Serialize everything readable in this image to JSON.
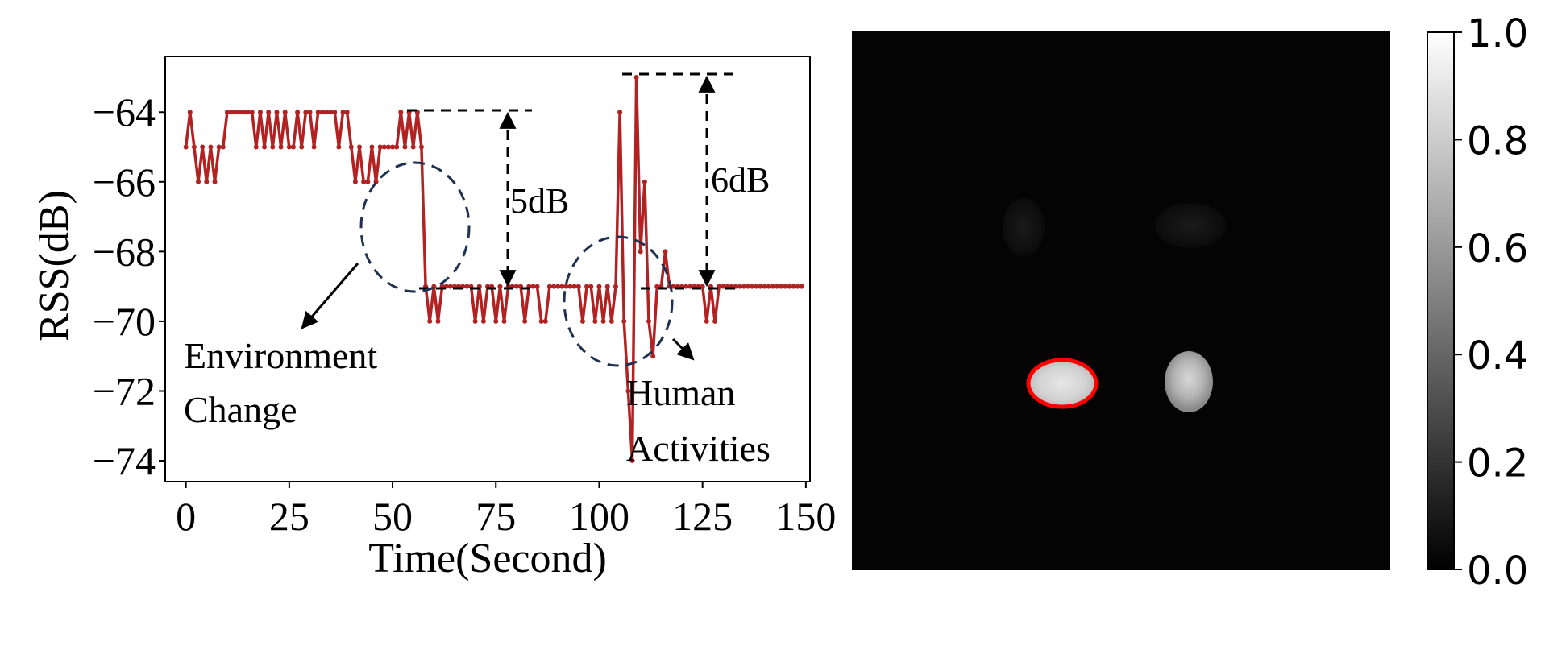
{
  "chart_data": [
    {
      "type": "line",
      "xlabel": "Time(Second)",
      "ylabel": "RSS(dB)",
      "xlim": [
        -5,
        151
      ],
      "ylim": [
        -74.6,
        -62.4
      ],
      "xticks": [
        0,
        25,
        50,
        75,
        100,
        125,
        150
      ],
      "yticks": [
        -64,
        -66,
        -68,
        -70,
        -72,
        -74
      ],
      "tick_labels_x": [
        "0",
        "25",
        "50",
        "75",
        "100",
        "125",
        "150"
      ],
      "tick_labels_y": [
        "−64",
        "−66",
        "−68",
        "−70",
        "−72",
        "−74"
      ],
      "color": "#b22222",
      "series": [
        {
          "x": [
            0,
            1,
            2,
            3,
            4,
            5,
            6,
            7,
            8,
            9,
            10,
            11,
            12,
            13,
            14,
            15,
            16,
            17,
            18,
            19,
            20,
            21,
            22,
            23,
            24,
            25,
            26,
            27,
            28,
            29,
            30,
            31,
            32,
            33,
            34,
            35,
            36,
            37,
            38,
            39,
            40,
            41,
            42,
            43,
            44,
            45,
            46,
            47,
            48,
            49,
            50,
            51,
            52,
            53,
            54,
            55,
            56,
            57,
            58,
            59,
            60,
            61,
            62,
            63,
            64,
            65,
            66,
            67,
            68,
            69,
            70,
            71,
            72,
            73,
            74,
            75,
            76,
            77,
            78,
            79,
            80,
            81,
            82,
            83,
            84,
            85,
            86,
            87,
            88,
            89,
            90,
            91,
            92,
            93,
            94,
            95,
            96,
            97,
            98,
            99,
            100,
            101,
            102,
            103,
            104,
            105,
            106,
            107,
            108,
            109,
            110,
            111,
            112,
            113,
            114,
            115,
            116,
            117,
            118,
            119,
            120,
            121,
            122,
            123,
            124,
            125,
            126,
            127,
            128,
            129,
            130,
            131,
            132,
            133,
            134,
            135,
            136,
            137,
            138,
            139,
            140,
            141,
            142,
            143,
            144,
            145,
            146,
            147,
            148,
            149
          ],
          "y": [
            -65,
            -64,
            -65,
            -66,
            -65,
            -66,
            -65,
            -66,
            -65,
            -65,
            -64,
            -64,
            -64,
            -64,
            -64,
            -64,
            -64,
            -65,
            -64,
            -65,
            -64,
            -65,
            -64,
            -65,
            -64,
            -65,
            -65,
            -64,
            -65,
            -64,
            -64,
            -65,
            -64,
            -64,
            -64,
            -64,
            -64,
            -65,
            -64,
            -64,
            -65,
            -66,
            -65,
            -66,
            -66,
            -65,
            -66,
            -65,
            -65,
            -65,
            -65,
            -65,
            -64,
            -65,
            -64,
            -65,
            -64,
            -65,
            -69,
            -70,
            -69,
            -70,
            -69,
            -69,
            -69,
            -69,
            -69,
            -69,
            -69,
            -69,
            -70,
            -69,
            -70,
            -69,
            -69,
            -70,
            -69,
            -70,
            -69,
            -69,
            -69,
            -69,
            -70,
            -69,
            -69,
            -69,
            -70,
            -70,
            -69,
            -69,
            -69,
            -69,
            -69,
            -69,
            -69,
            -69,
            -70,
            -69,
            -69,
            -70,
            -69,
            -70,
            -69,
            -70,
            -69,
            -64,
            -70,
            -72,
            -74,
            -63,
            -68,
            -66,
            -70,
            -71,
            -69,
            -69,
            -68,
            -69,
            -69,
            -69,
            -69,
            -69,
            -69,
            -69,
            -69,
            -69,
            -70,
            -69,
            -70,
            -69,
            -69,
            -69,
            -69,
            -69,
            -69,
            -69,
            -69,
            -69,
            -69,
            -69,
            -69,
            -69,
            -69,
            -69,
            -69,
            -69,
            -69,
            -69,
            -69,
            -69
          ]
        }
      ],
      "annotations": [
        {
          "text": "5dB",
          "x_from": 80,
          "y_from": -64,
          "y_to": -69
        },
        {
          "text": "6dB",
          "x_from": 131,
          "y_from": -63,
          "y_to": -69
        },
        {
          "text_lines": [
            "Environment",
            "Change"
          ]
        },
        {
          "text_lines": [
            "Human",
            "Activities"
          ]
        }
      ]
    },
    {
      "type": "heatmap",
      "colormap": "gray",
      "colorbar": {
        "min": 0.0,
        "max": 1.0,
        "tick_labels": [
          "0.0",
          "0.2",
          "0.4",
          "0.6",
          "0.8",
          "1.0"
        ]
      },
      "highlight_color": "#ff0000"
    }
  ]
}
